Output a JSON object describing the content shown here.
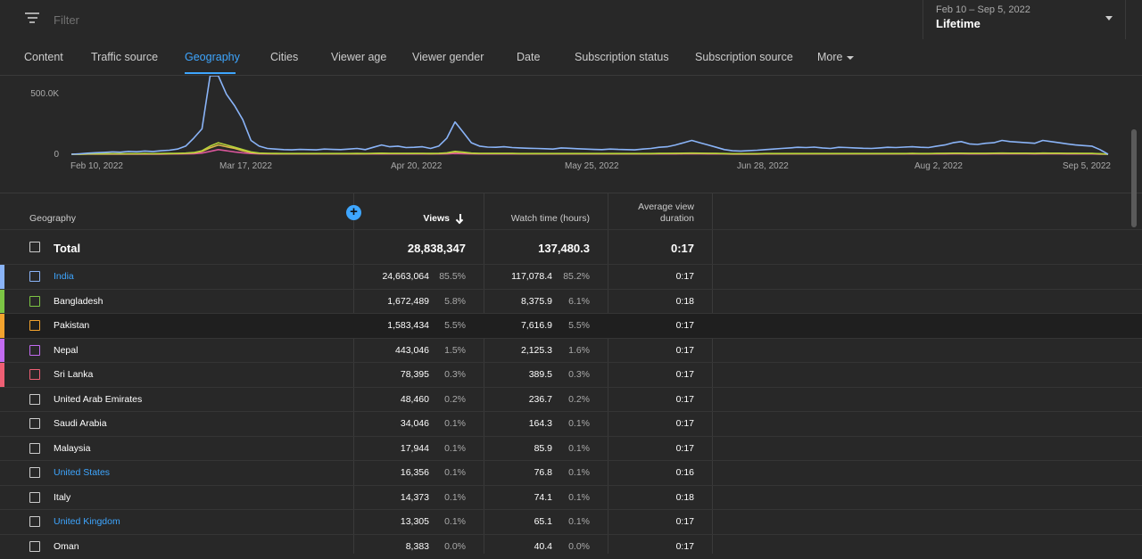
{
  "filter": {
    "placeholder": "Filter"
  },
  "date_picker": {
    "range": "Feb 10 – Sep 5, 2022",
    "label": "Lifetime"
  },
  "tabs": [
    {
      "label": "Content"
    },
    {
      "label": "Traffic source"
    },
    {
      "label": "Geography",
      "active": true
    },
    {
      "label": "Cities"
    },
    {
      "label": "Viewer age"
    },
    {
      "label": "Viewer gender"
    },
    {
      "label": "Date"
    },
    {
      "label": "Subscription status"
    },
    {
      "label": "Subscription source"
    },
    {
      "label": "More"
    }
  ],
  "chart_data": {
    "type": "line",
    "y_ticks": [
      "500.0K",
      "0"
    ],
    "x_ticks": [
      "Feb 10, 2022",
      "Mar 17, 2022",
      "Apr 20, 2022",
      "May 25, 2022",
      "Jun 28, 2022",
      "Aug 2, 2022",
      "Sep 5, 2022"
    ],
    "ylim": [
      0,
      680000
    ],
    "grid": false,
    "series": [
      {
        "color": "#8ab4f8",
        "values": [
          0,
          4000,
          9000,
          13000,
          16000,
          20000,
          18000,
          25000,
          22000,
          28000,
          24000,
          30000,
          35000,
          45000,
          70000,
          140000,
          220000,
          680000,
          680000,
          520000,
          420000,
          300000,
          120000,
          70000,
          50000,
          45000,
          40000,
          38000,
          42000,
          40000,
          38000,
          45000,
          42000,
          40000,
          45000,
          50000,
          40000,
          60000,
          80000,
          65000,
          70000,
          58000,
          60000,
          65000,
          50000,
          70000,
          140000,
          280000,
          190000,
          100000,
          70000,
          62000,
          60000,
          65000,
          58000,
          55000,
          52000,
          50000,
          48000,
          45000,
          55000,
          52000,
          48000,
          45000,
          42000,
          40000,
          45000,
          42000,
          40000,
          38000,
          45000,
          50000,
          60000,
          65000,
          80000,
          100000,
          120000,
          100000,
          80000,
          60000,
          40000,
          30000,
          28000,
          32000,
          35000,
          40000,
          45000,
          50000,
          55000,
          60000,
          58000,
          62000,
          55000,
          50000,
          60000,
          58000,
          55000,
          52000,
          50000,
          55000,
          60000,
          58000,
          62000,
          65000,
          60000,
          58000,
          70000,
          80000,
          100000,
          110000,
          90000,
          85000,
          95000,
          100000,
          120000,
          110000,
          105000,
          100000,
          95000,
          120000,
          110000,
          100000,
          90000,
          80000,
          75000,
          70000,
          40000,
          0
        ]
      },
      {
        "color": "#b4d23a",
        "values": [
          0,
          1000,
          2000,
          3000,
          3000,
          4000,
          4000,
          5000,
          5000,
          6000,
          5000,
          6000,
          7000,
          8000,
          10000,
          15000,
          30000,
          70000,
          100000,
          80000,
          60000,
          40000,
          20000,
          10000,
          8000,
          7000,
          6000,
          6000,
          6000,
          6000,
          6000,
          6000,
          6000,
          6000,
          6000,
          7000,
          6000,
          8000,
          9000,
          8000,
          8000,
          7000,
          7000,
          8000,
          7000,
          8000,
          12000,
          25000,
          18000,
          10000,
          8000,
          7000,
          7000,
          7000,
          7000,
          6000,
          6000,
          6000,
          6000,
          6000,
          6000,
          6000,
          6000,
          6000,
          6000,
          6000,
          6000,
          6000,
          6000,
          6000,
          6000,
          6000,
          7000,
          7000,
          8000,
          9000,
          10000,
          9000,
          8000,
          7000,
          6000,
          5000,
          5000,
          5000,
          5000,
          6000,
          6000,
          6000,
          6000,
          6000,
          6000,
          6000,
          6000,
          6000,
          6000,
          6000,
          6000,
          6000,
          6000,
          6000,
          6000,
          6000,
          6000,
          7000,
          6000,
          6000,
          7000,
          8000,
          9000,
          9000,
          8000,
          8000,
          8000,
          9000,
          10000,
          9000,
          9000,
          9000,
          8000,
          10000,
          9000,
          9000,
          8000,
          8000,
          7000,
          7000,
          5000,
          0
        ]
      },
      {
        "color": "#e0b84a",
        "values": [
          0,
          1000,
          2000,
          2000,
          3000,
          3000,
          3000,
          4000,
          4000,
          4000,
          4000,
          5000,
          5000,
          6000,
          8000,
          12000,
          25000,
          55000,
          80000,
          65000,
          50000,
          30000,
          15000,
          8000,
          6000,
          5000,
          5000,
          5000,
          5000,
          5000,
          5000,
          5000,
          5000,
          5000,
          5000,
          5000,
          5000,
          6000,
          7000,
          6000,
          6000,
          6000,
          6000,
          6000,
          5000,
          6000,
          10000,
          20000,
          15000,
          8000,
          6000,
          6000,
          6000,
          6000,
          6000,
          5000,
          5000,
          5000,
          5000,
          5000,
          5000,
          5000,
          5000,
          5000,
          5000,
          5000,
          5000,
          5000,
          5000,
          5000,
          5000,
          5000,
          6000,
          6000,
          7000,
          8000,
          9000,
          8000,
          7000,
          6000,
          5000,
          4000,
          4000,
          4000,
          4000,
          5000,
          5000,
          5000,
          5000,
          5000,
          5000,
          5000,
          5000,
          5000,
          5000,
          5000,
          5000,
          5000,
          5000,
          5000,
          5000,
          5000,
          5000,
          6000,
          5000,
          5000,
          6000,
          7000,
          8000,
          8000,
          7000,
          7000,
          7000,
          8000,
          9000,
          8000,
          8000,
          8000,
          7000,
          9000,
          8000,
          8000,
          7000,
          7000,
          6000,
          6000,
          4000,
          0
        ]
      },
      {
        "color": "#d9569a",
        "values": [
          0,
          500,
          500,
          1000,
          1000,
          1000,
          1000,
          1000,
          1000,
          1000,
          1000,
          1000,
          2000,
          2000,
          3000,
          5000,
          10000,
          25000,
          40000,
          30000,
          20000,
          12000,
          6000,
          3000,
          2000,
          2000,
          2000,
          2000,
          2000,
          2000,
          2000,
          2000,
          2000,
          2000,
          2000,
          2000,
          2000,
          2000,
          2000,
          2000,
          2000,
          2000,
          2000,
          2000,
          2000,
          2000,
          3000,
          6000,
          4000,
          3000,
          2000,
          2000,
          2000,
          2000,
          2000,
          2000,
          2000,
          2000,
          2000,
          2000,
          2000,
          2000,
          2000,
          2000,
          2000,
          2000,
          2000,
          2000,
          2000,
          2000,
          2000,
          2000,
          2000,
          2000,
          2000,
          3000,
          3000,
          3000,
          2000,
          2000,
          2000,
          1000,
          1000,
          1000,
          1000,
          2000,
          2000,
          2000,
          2000,
          2000,
          2000,
          2000,
          2000,
          2000,
          2000,
          2000,
          2000,
          2000,
          2000,
          2000,
          2000,
          2000,
          2000,
          2000,
          2000,
          2000,
          2000,
          2000,
          3000,
          3000,
          2000,
          2000,
          2000,
          3000,
          3000,
          3000,
          3000,
          3000,
          2000,
          3000,
          3000,
          3000,
          2000,
          2000,
          2000,
          2000,
          1000,
          0
        ]
      }
    ]
  },
  "table": {
    "headers": {
      "geography": "Geography",
      "views": "Views",
      "watch_time": "Watch time (hours)",
      "avg_view": "Average view",
      "avg_view2": "duration"
    },
    "total": {
      "label": "Total",
      "views": "28,838,347",
      "watch_time": "137,480.3",
      "avg": "0:17"
    },
    "rows": [
      {
        "name": "India",
        "views": "24,663,064",
        "vp": "85.5%",
        "wt": "117,078.4",
        "wp": "85.2%",
        "avg": "0:17",
        "color": "#8ab4f8",
        "link": true
      },
      {
        "name": "Bangladesh",
        "views": "1,672,489",
        "vp": "5.8%",
        "wt": "8,375.9",
        "wp": "6.1%",
        "avg": "0:18",
        "color": "#7cc544",
        "link": false
      },
      {
        "name": "Pakistan",
        "views": "1,583,434",
        "vp": "5.5%",
        "wt": "7,616.9",
        "wp": "5.5%",
        "avg": "0:17",
        "color": "#f3a32e",
        "link": false
      },
      {
        "name": "Nepal",
        "views": "443,046",
        "vp": "1.5%",
        "wt": "2,125.3",
        "wp": "1.6%",
        "avg": "0:17",
        "color": "#c26bf0",
        "link": false
      },
      {
        "name": "Sri Lanka",
        "views": "78,395",
        "vp": "0.3%",
        "wt": "389.5",
        "wp": "0.3%",
        "avg": "0:17",
        "color": "#ef5f74",
        "link": false
      },
      {
        "name": "United Arab Emirates",
        "views": "48,460",
        "vp": "0.2%",
        "wt": "236.7",
        "wp": "0.2%",
        "avg": "0:17",
        "color": "",
        "link": false
      },
      {
        "name": "Saudi Arabia",
        "views": "34,046",
        "vp": "0.1%",
        "wt": "164.3",
        "wp": "0.1%",
        "avg": "0:17",
        "color": "",
        "link": false
      },
      {
        "name": "Malaysia",
        "views": "17,944",
        "vp": "0.1%",
        "wt": "85.9",
        "wp": "0.1%",
        "avg": "0:17",
        "color": "",
        "link": false
      },
      {
        "name": "United States",
        "views": "16,356",
        "vp": "0.1%",
        "wt": "76.8",
        "wp": "0.1%",
        "avg": "0:16",
        "color": "",
        "link": true
      },
      {
        "name": "Italy",
        "views": "14,373",
        "vp": "0.1%",
        "wt": "74.1",
        "wp": "0.1%",
        "avg": "0:18",
        "color": "",
        "link": false
      },
      {
        "name": "United Kingdom",
        "views": "13,305",
        "vp": "0.1%",
        "wt": "65.1",
        "wp": "0.1%",
        "avg": "0:17",
        "color": "",
        "link": true
      },
      {
        "name": "Oman",
        "views": "8,383",
        "vp": "0.0%",
        "wt": "40.4",
        "wp": "0.0%",
        "avg": "0:17",
        "color": "",
        "link": false
      }
    ]
  }
}
